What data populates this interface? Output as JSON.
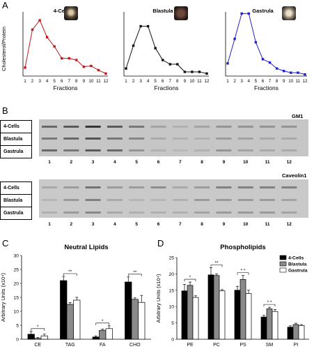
{
  "panels": {
    "a": "A",
    "b": "B",
    "c": "C",
    "d": "D"
  },
  "panel_a": {
    "ylabel": "Cholesterol/Protein",
    "xlabel": "Fractions",
    "fractions": [
      "1",
      "2",
      "3",
      "4",
      "5",
      "6",
      "7",
      "8",
      "9",
      "10",
      "11",
      "12"
    ],
    "charts": [
      {
        "title": "4-Cells",
        "color": "#c0181b",
        "values": [
          1.0,
          5.5,
          6.6,
          4.6,
          3.5,
          2.1,
          2.1,
          1.9,
          1.1,
          1.2,
          0.7,
          0.3
        ]
      },
      {
        "title": "Blastula",
        "color": "#111111",
        "values": [
          0.9,
          3.6,
          5.9,
          5.9,
          3.3,
          1.9,
          1.4,
          1.4,
          0.5,
          0.5,
          0.5,
          0.3
        ]
      },
      {
        "title": "Gastrula",
        "color": "#2222c8",
        "values": [
          1.5,
          4.4,
          7.4,
          7.4,
          4.0,
          2.0,
          1.6,
          0.9,
          0.6,
          0.4,
          0.4,
          0.2
        ]
      }
    ]
  },
  "panel_b": {
    "blots": [
      {
        "title": "GM1",
        "rows": [
          "4-Cells",
          "Blastula",
          "Gastrula"
        ]
      },
      {
        "title": "Caveolin1",
        "rows": [
          "4-Cells",
          "Blastula",
          "Gastrula"
        ]
      }
    ],
    "lanes": [
      "1",
      "2",
      "3",
      "4",
      "5",
      "6",
      "7",
      "8",
      "9",
      "10",
      "11",
      "12"
    ]
  },
  "chart_data": [
    {
      "type": "bar",
      "title": "Neutral Lipids",
      "ylabel": "Arbitrary Units (x10⁴)",
      "categories": [
        "CE",
        "TAG",
        "FA",
        "CHO"
      ],
      "ylim": [
        0,
        30
      ],
      "yticks": [
        "0",
        "5",
        "10",
        "15",
        "20",
        "25",
        "30"
      ],
      "series": [
        {
          "name": "4-Cells",
          "color": "#000000",
          "values": [
            1.8,
            21.0,
            0.8,
            20.5
          ],
          "errors": [
            1.0,
            1.5,
            0.4,
            1.8
          ]
        },
        {
          "name": "Blastula",
          "color": "#8a8a8a",
          "values": [
            0.3,
            12.5,
            3.2,
            14.3
          ],
          "errors": [
            0.3,
            0.6,
            0.4,
            0.5
          ]
        },
        {
          "name": "Gastrula",
          "color": "#ffffff",
          "values": [
            1.2,
            14.0,
            3.8,
            13.2
          ],
          "errors": [
            0.6,
            1.0,
            1.0,
            2.5
          ]
        }
      ],
      "significance": [
        "*",
        "**",
        "*",
        "**"
      ]
    },
    {
      "type": "bar",
      "title": "Phospholipids",
      "ylabel": "Arbitrary Units (x10⁴)",
      "categories": [
        "PE",
        "PC",
        "PS",
        "SM",
        "PI"
      ],
      "ylim": [
        0,
        25
      ],
      "yticks": [
        "0",
        "5",
        "10",
        "15",
        "20",
        "25"
      ],
      "legend": [
        "4-Cells",
        "Blastula",
        "Gastrula"
      ],
      "series": [
        {
          "name": "4-Cells",
          "color": "#000000",
          "values": [
            14.8,
            19.7,
            15.0,
            6.8,
            3.7
          ],
          "errors": [
            2.0,
            2.2,
            1.2,
            0.5,
            0.4
          ]
        },
        {
          "name": "Blastula",
          "color": "#8a8a8a",
          "values": [
            16.5,
            19.5,
            18.3,
            9.3,
            4.5
          ],
          "errors": [
            1.0,
            0.5,
            1.2,
            0.5,
            0.4
          ]
        },
        {
          "name": "Gastrula",
          "color": "#ffffff",
          "values": [
            12.8,
            14.8,
            14.0,
            8.5,
            4.2
          ],
          "errors": [
            0.5,
            0.4,
            1.0,
            0.6,
            0.3
          ]
        }
      ],
      "significance": [
        "*",
        "**",
        "* *",
        "* *",
        ""
      ]
    }
  ]
}
